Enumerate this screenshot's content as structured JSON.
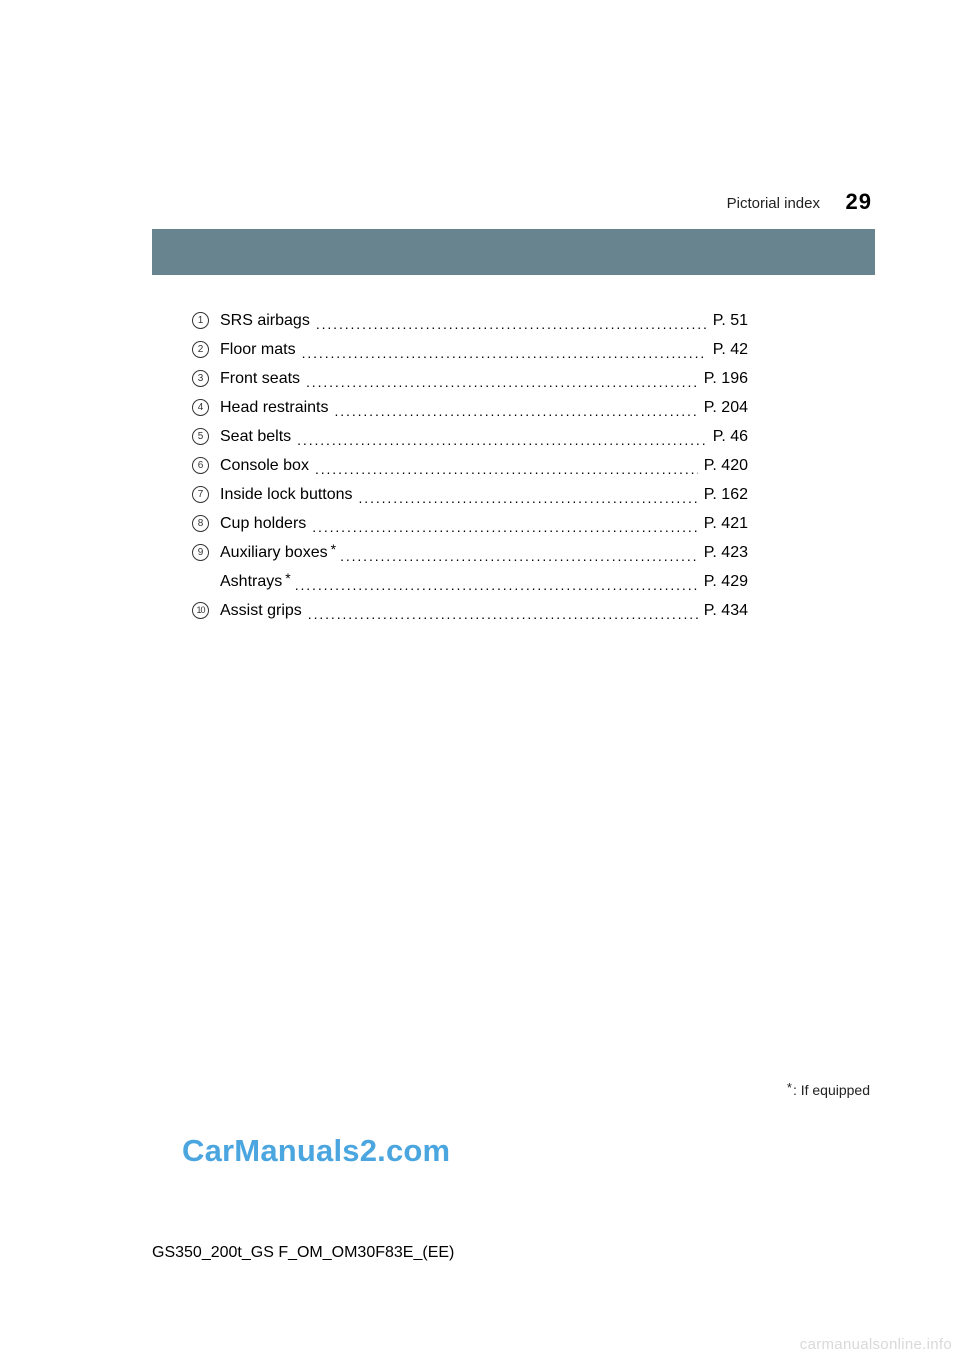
{
  "header": {
    "section_title": "Pictorial index",
    "page_number": "29"
  },
  "bar": {
    "color": "#68858f"
  },
  "index": {
    "rows": [
      {
        "num": "1",
        "label": "SRS airbags",
        "has_star": false,
        "page": "P. 51"
      },
      {
        "num": "2",
        "label": "Floor mats",
        "has_star": false,
        "page": "P. 42"
      },
      {
        "num": "3",
        "label": "Front seats",
        "has_star": false,
        "page": "P. 196"
      },
      {
        "num": "4",
        "label": "Head restraints",
        "has_star": false,
        "page": "P. 204"
      },
      {
        "num": "5",
        "label": "Seat belts",
        "has_star": false,
        "page": "P. 46"
      },
      {
        "num": "6",
        "label": "Console box",
        "has_star": false,
        "page": "P. 420"
      },
      {
        "num": "7",
        "label": "Inside lock buttons",
        "has_star": false,
        "page": "P. 162"
      },
      {
        "num": "8",
        "label": "Cup holders",
        "has_star": false,
        "page": "P. 421"
      },
      {
        "num": "9",
        "label": "Auxiliary boxes",
        "has_star": true,
        "page": "P. 423"
      },
      {
        "num": "",
        "label": "Ashtrays",
        "has_star": true,
        "page": "P. 429",
        "sub": true
      },
      {
        "num": "10",
        "label": "Assist grips",
        "has_star": false,
        "page": "P. 434"
      }
    ],
    "star_symbol": "*"
  },
  "footnote": {
    "star": "*",
    "text": ": If equipped"
  },
  "watermark": "CarManuals2.com",
  "doc_code": "GS350_200t_GS F_OM_OM30F83E_(EE)",
  "brand": "carmanualsonline.info",
  "colors": {
    "bar": "#68858f",
    "watermark": "#4ba6e0",
    "brand": "#d9d9d9",
    "text": "#000000"
  },
  "typography": {
    "base_font": "Arial, Helvetica, sans-serif",
    "row_fontsize": 16,
    "pagenum_fontsize": 22,
    "section_fontsize": 15,
    "footnote_fontsize": 14,
    "watermark_fontsize": 31,
    "doccode_fontsize": 16
  }
}
